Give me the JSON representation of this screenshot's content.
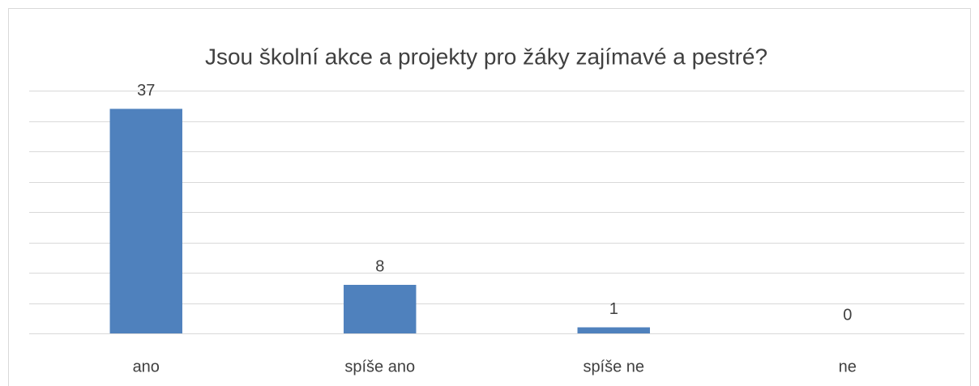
{
  "chart_data": {
    "type": "bar",
    "title": "Jsou školní akce a projekty pro žáky zajímavé a pestré?",
    "categories": [
      "ano",
      "spíše ano",
      "spíše ne",
      "ne"
    ],
    "values": [
      37,
      8,
      1,
      0
    ],
    "color": "#4f81bd",
    "ylim": [
      0,
      40
    ],
    "yticks": [
      0,
      5,
      10,
      15,
      20,
      25,
      30,
      35,
      40
    ],
    "grid": true
  }
}
